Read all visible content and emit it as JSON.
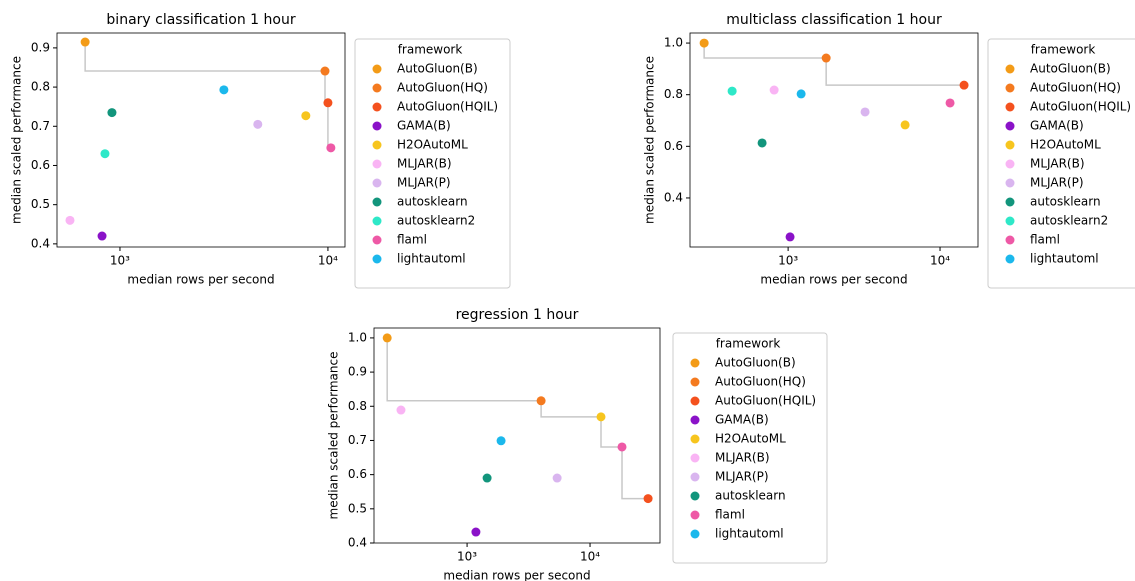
{
  "chart_data": [
    {
      "type": "scatter",
      "title": "binary classification 1 hour",
      "xlabel": "median rows per second",
      "ylabel": "median scaled performance",
      "xscale": "log",
      "xlim": [
        498,
        12080
      ],
      "ylim": [
        0.392,
        0.938
      ],
      "xticks": [
        {
          "value": 1000,
          "label": "10³"
        },
        {
          "value": 10000,
          "label": "10⁴"
        }
      ],
      "yticks": [
        0.4,
        0.5,
        0.6,
        0.7,
        0.8,
        0.9
      ],
      "legend_title": "framework",
      "legend": "outside right",
      "series": [
        {
          "name": "AutoGluon(B)",
          "color": "#f39b17",
          "x": [
            680
          ],
          "values": [
            0.915
          ]
        },
        {
          "name": "AutoGluon(HQ)",
          "color": "#f47a1f",
          "x": [
            9680
          ],
          "values": [
            0.841
          ]
        },
        {
          "name": "AutoGluon(HQIL)",
          "color": "#f4511e",
          "x": [
            10000
          ],
          "values": [
            0.76
          ]
        },
        {
          "name": "GAMA(B)",
          "color": "#8a12c8",
          "x": [
            820
          ],
          "values": [
            0.42
          ]
        },
        {
          "name": "H2OAutoML",
          "color": "#f7c51e",
          "x": [
            7830
          ],
          "values": [
            0.727
          ]
        },
        {
          "name": "MLJAR(B)",
          "color": "#f9b4f4",
          "x": [
            575
          ],
          "values": [
            0.46
          ]
        },
        {
          "name": "MLJAR(P)",
          "color": "#d9b5ef",
          "x": [
            4600
          ],
          "values": [
            0.705
          ]
        },
        {
          "name": "autosklearn",
          "color": "#12957c",
          "x": [
            915
          ],
          "values": [
            0.735
          ]
        },
        {
          "name": "autosklearn2",
          "color": "#2ee8c8",
          "x": [
            847
          ],
          "values": [
            0.63
          ]
        },
        {
          "name": "flaml",
          "color": "#ee59a6",
          "x": [
            10330
          ],
          "values": [
            0.645
          ]
        },
        {
          "name": "lightautoml",
          "color": "#1bb8ec",
          "x": [
            3160
          ],
          "values": [
            0.793
          ]
        }
      ]
    },
    {
      "type": "scatter",
      "title": "multiclass classification 1 hour",
      "xlabel": "median rows per second",
      "ylabel": "median scaled performance",
      "xscale": "log",
      "xlim": [
        226,
        17780
      ],
      "ylim": [
        0.21,
        1.039
      ],
      "xticks": [
        {
          "value": 1000,
          "label": "10³"
        },
        {
          "value": 10000,
          "label": "10⁴"
        }
      ],
      "yticks": [
        0.4,
        0.6,
        0.8,
        {
          "value": 1,
          "label": "1.0"
        }
      ],
      "legend_title": "framework",
      "legend": "outside right",
      "series": [
        {
          "name": "AutoGluon(B)",
          "color": "#f39b17",
          "x": [
            280
          ],
          "values": [
            1.0
          ]
        },
        {
          "name": "AutoGluon(HQ)",
          "color": "#f47a1f",
          "x": [
            1780
          ],
          "values": [
            0.942
          ]
        },
        {
          "name": "AutoGluon(HQIL)",
          "color": "#f4511e",
          "x": [
            14390
          ],
          "values": [
            0.837
          ]
        },
        {
          "name": "GAMA(B)",
          "color": "#8a12c8",
          "x": [
            1030
          ],
          "values": [
            0.249
          ]
        },
        {
          "name": "H2OAutoML",
          "color": "#f7c51e",
          "x": [
            5890
          ],
          "values": [
            0.683
          ]
        },
        {
          "name": "MLJAR(B)",
          "color": "#f9b4f4",
          "x": [
            809
          ],
          "values": [
            0.818
          ]
        },
        {
          "name": "MLJAR(P)",
          "color": "#d9b5ef",
          "x": [
            3210
          ],
          "values": [
            0.733
          ]
        },
        {
          "name": "autosklearn",
          "color": "#12957c",
          "x": [
            674
          ],
          "values": [
            0.613
          ]
        },
        {
          "name": "autosklearn2",
          "color": "#2ee8c8",
          "x": [
            428
          ],
          "values": [
            0.814
          ]
        },
        {
          "name": "flaml",
          "color": "#ee59a6",
          "x": [
            11640
          ],
          "values": [
            0.768
          ]
        },
        {
          "name": "lightautoml",
          "color": "#1bb8ec",
          "x": [
            1218
          ],
          "values": [
            0.803
          ]
        }
      ]
    },
    {
      "type": "scatter",
      "title": "regression 1 hour",
      "xlabel": "median rows per second",
      "ylabel": "median scaled performance",
      "xscale": "log",
      "xlim": [
        175,
        37070
      ],
      "ylim": [
        0.4,
        1.029
      ],
      "xticks": [
        {
          "value": 1000,
          "label": "10³"
        },
        {
          "value": 10000,
          "label": "10⁴"
        }
      ],
      "yticks": [
        0.4,
        0.5,
        0.6,
        0.7,
        0.8,
        0.9,
        {
          "value": 1,
          "label": "1.0"
        }
      ],
      "legend_title": "framework",
      "legend": "outside right",
      "series": [
        {
          "name": "AutoGluon(B)",
          "color": "#f39b17",
          "x": [
            224
          ],
          "values": [
            1.0
          ]
        },
        {
          "name": "AutoGluon(HQ)",
          "color": "#f47a1f",
          "x": [
            4000
          ],
          "values": [
            0.816
          ]
        },
        {
          "name": "AutoGluon(HQIL)",
          "color": "#f4511e",
          "x": [
            29650
          ],
          "values": [
            0.53
          ]
        },
        {
          "name": "GAMA(B)",
          "color": "#8a12c8",
          "x": [
            1180
          ],
          "values": [
            0.432
          ]
        },
        {
          "name": "H2OAutoML",
          "color": "#f7c51e",
          "x": [
            12280
          ],
          "values": [
            0.769
          ]
        },
        {
          "name": "MLJAR(B)",
          "color": "#f9b4f4",
          "x": [
            290
          ],
          "values": [
            0.789
          ]
        },
        {
          "name": "MLJAR(P)",
          "color": "#d9b5ef",
          "x": [
            5400
          ],
          "values": [
            0.59
          ]
        },
        {
          "name": "autosklearn",
          "color": "#12957c",
          "x": [
            1455
          ],
          "values": [
            0.59
          ]
        },
        {
          "name": "flaml",
          "color": "#ee59a6",
          "x": [
            18200
          ],
          "values": [
            0.681
          ]
        },
        {
          "name": "lightautoml",
          "color": "#1bb8ec",
          "x": [
            1890
          ],
          "values": [
            0.699
          ]
        }
      ]
    }
  ]
}
